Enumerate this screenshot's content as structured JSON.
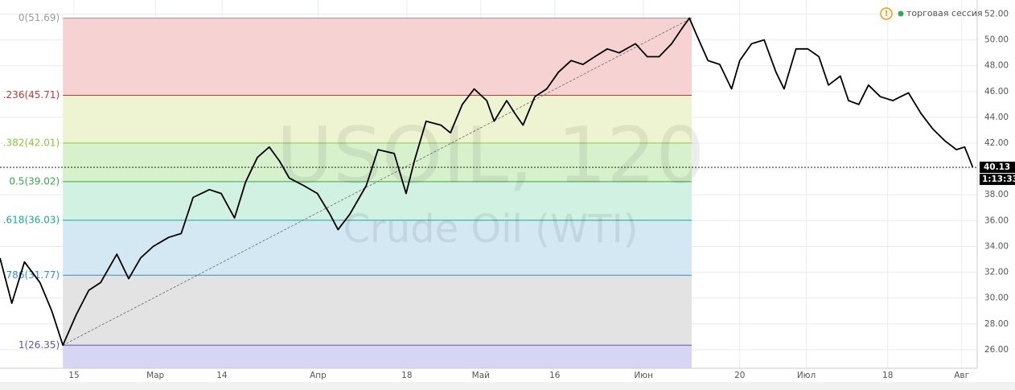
{
  "chart_data": {
    "type": "line",
    "watermark": "USOIL, 120",
    "watermark_subtitle": "Crude Oil (WTI)",
    "session_label": "торговая сессия",
    "color": "#000000",
    "x": [
      -10.0,
      -8.4,
      -6.7,
      -4.6,
      -3.0,
      -1.5,
      0.3,
      2.0,
      3.6,
      5.8,
      7.4,
      9.0,
      10.7,
      12.8,
      14.5,
      16.1,
      18.3,
      19.9,
      21.7,
      23.2,
      24.8,
      26.4,
      27.8,
      29.1,
      31.1,
      32.9,
      34.6,
      35.7,
      37.3,
      39.5,
      41.1,
      43.3,
      44.9,
      46.0,
      47.6,
      49.6,
      50.9,
      52.5,
      54.1,
      55.8,
      56.8,
      58.5,
      59.6,
      60.7,
      62.3,
      63.9,
      65.5,
      67.2,
      68.8,
      70.4,
      72.1,
      73.7,
      75.9,
      77.5,
      79.1,
      80.8,
      82.2,
      83.2,
      84.0,
      85.7,
      87.3,
      88.9,
      90.0,
      91.6,
      93.3,
      94.9,
      96.0,
      97.6,
      99.2,
      100.7,
      102.0,
      103.6,
      104.7,
      106.1,
      107.4,
      109.0,
      110.7,
      112.8,
      114.5,
      116.1,
      117.7,
      119.3,
      120.4,
      121.5
    ],
    "values": [
      33.1,
      29.6,
      32.8,
      31.2,
      29.0,
      26.35,
      28.7,
      30.6,
      31.2,
      33.4,
      31.5,
      33.1,
      34.0,
      34.7,
      35.0,
      37.8,
      38.4,
      38.1,
      36.2,
      39.0,
      40.9,
      41.7,
      40.6,
      39.3,
      38.7,
      38.1,
      36.5,
      35.3,
      36.5,
      38.7,
      41.5,
      41.2,
      38.1,
      40.6,
      43.7,
      43.4,
      42.8,
      45.0,
      46.2,
      45.3,
      43.7,
      45.3,
      44.3,
      43.4,
      45.6,
      46.2,
      47.5,
      48.4,
      48.1,
      48.7,
      49.3,
      49.0,
      49.7,
      48.7,
      48.7,
      49.7,
      50.9,
      51.69,
      50.6,
      48.4,
      48.1,
      46.2,
      48.4,
      49.7,
      50.0,
      47.5,
      46.2,
      49.3,
      49.3,
      48.7,
      46.5,
      47.2,
      45.3,
      45.0,
      46.5,
      45.6,
      45.3,
      45.9,
      44.3,
      43.1,
      42.2,
      41.5,
      41.7,
      40.13
    ],
    "xlim": [
      -10,
      122.1
    ],
    "ylim": [
      24.56,
      53.09
    ],
    "xticks": [
      {
        "value": 0,
        "label": "15"
      },
      {
        "value": 11,
        "label": "Мар"
      },
      {
        "value": 20,
        "label": "14"
      },
      {
        "value": 33,
        "label": "Апр"
      },
      {
        "value": 45,
        "label": "18"
      },
      {
        "value": 55,
        "label": "Май"
      },
      {
        "value": 65,
        "label": "16"
      },
      {
        "value": 77,
        "label": "Июн"
      },
      {
        "value": 90,
        "label": "20"
      },
      {
        "value": 99,
        "label": "Июл"
      },
      {
        "value": 110,
        "label": "18"
      },
      {
        "value": 120,
        "label": "Авг"
      }
    ],
    "yticks": [
      {
        "value": 26,
        "label": "26.00"
      },
      {
        "value": 28,
        "label": "28.00"
      },
      {
        "value": 30,
        "label": "30.00"
      },
      {
        "value": 32,
        "label": "32.00"
      },
      {
        "value": 34,
        "label": "34.00"
      },
      {
        "value": 36,
        "label": "36.00"
      },
      {
        "value": 38,
        "label": "38.00"
      },
      {
        "value": 40,
        "label": "40.00"
      },
      {
        "value": 42,
        "label": "42.00"
      },
      {
        "value": 44,
        "label": "44.00"
      },
      {
        "value": 46,
        "label": "46.00"
      },
      {
        "value": 48,
        "label": "48.00"
      },
      {
        "value": 50,
        "label": "50.00"
      },
      {
        "value": 52,
        "label": "52.00"
      }
    ],
    "grid": true,
    "last_price": 40.13,
    "countdown": "1:13:33",
    "fib_xrange": [
      -1.5,
      83.5
    ],
    "fib_levels": [
      {
        "value": 51.69,
        "label": "0(51.69)",
        "color": "#9a9a9a",
        "fill": "#f6d2d2"
      },
      {
        "value": 45.71,
        "label": ".236(45.71)",
        "color": "#c0392b",
        "fill": "#eef4d2"
      },
      {
        "value": 42.01,
        "label": ".382(42.01)",
        "color": "#8cc63f",
        "fill": "#d8f1cd"
      },
      {
        "value": 39.02,
        "label": "0.5(39.02)",
        "color": "#3aa845",
        "fill": "#d1f1e3"
      },
      {
        "value": 36.03,
        "label": ".618(36.03)",
        "color": "#22a699",
        "fill": "#d3e8f3"
      },
      {
        "value": 31.77,
        "label": ".786(31.77)",
        "color": "#3a8fc4",
        "fill": "#e3e3e3"
      },
      {
        "value": 26.35,
        "label": "1(26.35)",
        "color": "#5a5aa8",
        "fill": "#d6d6f4"
      }
    ]
  }
}
